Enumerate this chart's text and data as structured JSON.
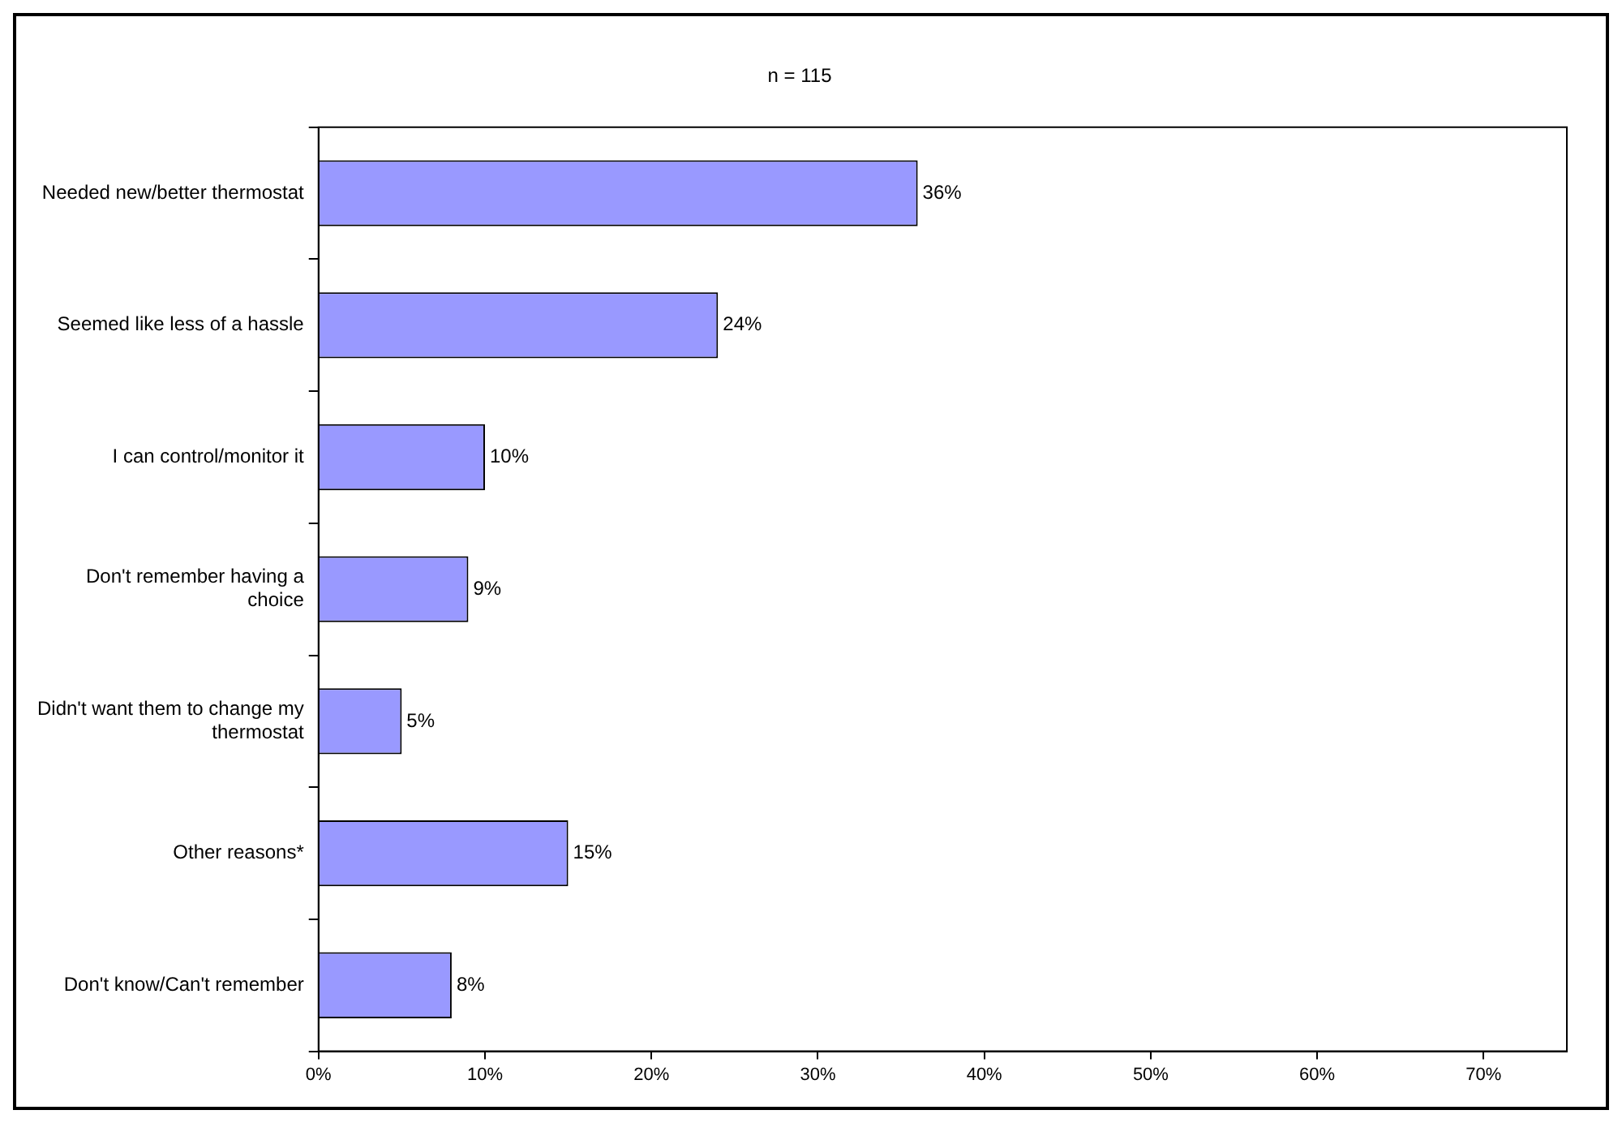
{
  "chart_data": {
    "type": "bar",
    "orientation": "horizontal",
    "title": "n = 115",
    "categories": [
      "Needed new/better thermostat",
      "Seemed like less of a hassle",
      "I can control/monitor it",
      "Don't remember having a choice",
      "Didn't want them to change my thermostat",
      "Other reasons*",
      "Don't know/Can't remember"
    ],
    "values": [
      36,
      24,
      10,
      9,
      5,
      15,
      8
    ],
    "value_labels": [
      "36%",
      "24%",
      "10%",
      "9%",
      "5%",
      "15%",
      "8%"
    ],
    "color": "#9999ff",
    "xlim": [
      0,
      75
    ],
    "xticks": [
      {
        "value": 0,
        "label": "0%"
      },
      {
        "value": 10,
        "label": "10%"
      },
      {
        "value": 20,
        "label": "20%"
      },
      {
        "value": 30,
        "label": "30%"
      },
      {
        "value": 40,
        "label": "40%"
      },
      {
        "value": 50,
        "label": "50%"
      },
      {
        "value": 60,
        "label": "60%"
      },
      {
        "value": 70,
        "label": "70%"
      }
    ],
    "grid": false,
    "legend": false
  }
}
